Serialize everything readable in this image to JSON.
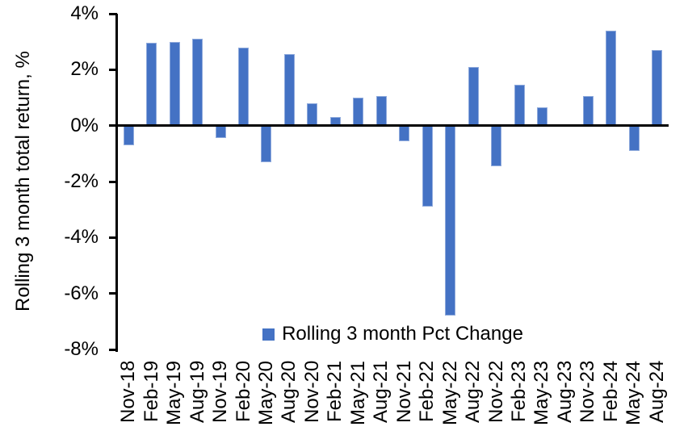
{
  "chart_data": {
    "type": "bar",
    "title": "",
    "ylabel": "Rolling 3 month total return, %",
    "xlabel": "",
    "legend_position": "bottom-center-inside-plot",
    "grid": false,
    "ylim": [
      -8,
      4
    ],
    "ytick_step": 2,
    "yticks": [
      4,
      2,
      0,
      -2,
      -4,
      -6,
      -8
    ],
    "ytick_labels": [
      "4%",
      "2%",
      "0%",
      "-2%",
      "-4%",
      "-6%",
      "-8%"
    ],
    "categories": [
      "Nov-18",
      "Feb-19",
      "May-19",
      "Aug-19",
      "Nov-19",
      "Feb-20",
      "May-20",
      "Aug-20",
      "Nov-20",
      "Feb-21",
      "May-21",
      "Aug-21",
      "Nov-21",
      "Feb-22",
      "May-22",
      "Aug-22",
      "Nov-22",
      "Feb-23",
      "May-23",
      "Aug-23",
      "Nov-23",
      "Feb-24",
      "May-24",
      "Aug-24"
    ],
    "series": [
      {
        "name": "Rolling 3 month Pct Change",
        "values": [
          -0.7,
          2.95,
          3.0,
          3.1,
          -0.45,
          2.8,
          -1.3,
          2.55,
          0.8,
          0.3,
          1.0,
          1.05,
          -0.55,
          -2.9,
          -6.8,
          2.1,
          -1.45,
          1.45,
          0.65,
          0.0,
          1.05,
          3.4,
          -0.9,
          2.7
        ]
      }
    ],
    "colors": {
      "bar_fill": "#4472C4",
      "bar_border": "#8FAADC",
      "axis": "#000000",
      "text": "#000000",
      "background": "#FFFFFF"
    }
  }
}
